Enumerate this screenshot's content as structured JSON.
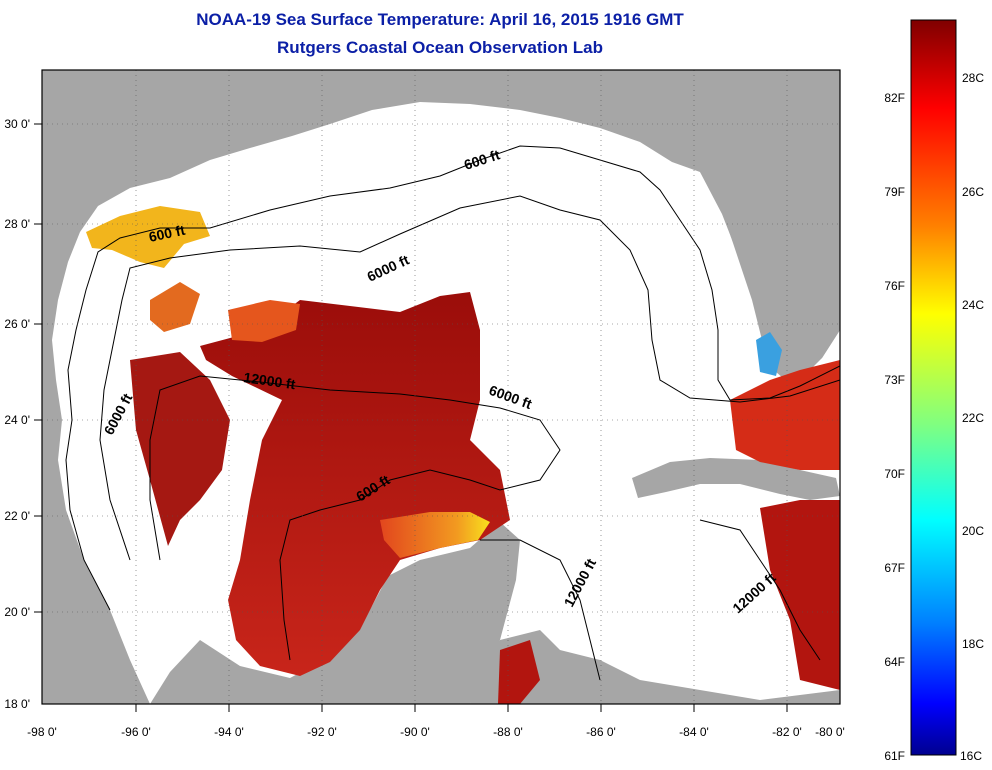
{
  "header": {
    "title": "NOAA-19 Sea Surface Temperature:  April 16, 2015 1916 GMT",
    "subtitle": "Rutgers Coastal Ocean Observation Lab"
  },
  "map": {
    "x_ticks": [
      "-98 0'",
      "-96 0'",
      "-94 0'",
      "-92 0'",
      "-90 0'",
      "-88 0'",
      "-86 0'",
      "-84 0'",
      "-82 0'",
      "-80 0'"
    ],
    "y_ticks": [
      "30 0'",
      "28 0'",
      "26 0'",
      "24 0'",
      "22 0'",
      "20 0'",
      "18 0'"
    ],
    "contour_labels": [
      {
        "text": "600 ft"
      },
      {
        "text": "600 ft"
      },
      {
        "text": "6000 ft"
      },
      {
        "text": "12000 ft"
      },
      {
        "text": "6000 ft"
      },
      {
        "text": "6000 ft"
      },
      {
        "text": "600 ft"
      },
      {
        "text": "12000 ft"
      },
      {
        "text": "12000 ft"
      }
    ],
    "colors": {
      "land": "#a6a6a6",
      "ocean_no_data": "#ffffff",
      "frame": "#000000"
    }
  },
  "colorbar": {
    "fahrenheit_labels": [
      "82F",
      "79F",
      "76F",
      "73F",
      "70F",
      "67F",
      "64F",
      "61F"
    ],
    "celsius_labels": [
      "28C",
      "26C",
      "24C",
      "22C",
      "20C",
      "18C",
      "16C"
    ],
    "range_c": [
      16,
      29
    ]
  }
}
